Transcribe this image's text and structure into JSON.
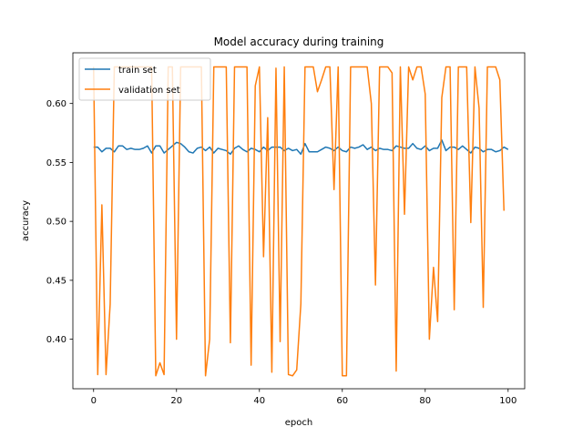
{
  "chart_data": {
    "type": "line",
    "title": "Model accuracy during training",
    "xlabel": "epoch",
    "ylabel": "accuracy",
    "xlim": [
      -5,
      104
    ],
    "ylim": [
      0.358,
      0.643
    ],
    "xticks": [
      0,
      20,
      40,
      60,
      80,
      100
    ],
    "yticks": [
      0.4,
      0.45,
      0.5,
      0.55,
      0.6
    ],
    "ytick_labels": [
      "0.40",
      "0.45",
      "0.50",
      "0.55",
      "0.60"
    ],
    "legend": "top-left",
    "grid": false,
    "series": [
      {
        "name": "train set",
        "color": "#1f77b4",
        "values": [
          0.563,
          0.563,
          0.559,
          0.562,
          0.562,
          0.559,
          0.564,
          0.564,
          0.561,
          0.562,
          0.561,
          0.561,
          0.562,
          0.564,
          0.558,
          0.564,
          0.564,
          0.558,
          0.561,
          0.564,
          0.567,
          0.566,
          0.563,
          0.559,
          0.558,
          0.562,
          0.563,
          0.56,
          0.563,
          0.558,
          0.562,
          0.561,
          0.56,
          0.557,
          0.562,
          0.564,
          0.561,
          0.559,
          0.562,
          0.561,
          0.559,
          0.563,
          0.56,
          0.563,
          0.563,
          0.563,
          0.56,
          0.562,
          0.56,
          0.561,
          0.557,
          0.566,
          0.559,
          0.559,
          0.559,
          0.561,
          0.563,
          0.562,
          0.56,
          0.563,
          0.56,
          0.559,
          0.563,
          0.562,
          0.563,
          0.565,
          0.561,
          0.563,
          0.56,
          0.562,
          0.561,
          0.561,
          0.56,
          0.564,
          0.563,
          0.562,
          0.562,
          0.566,
          0.562,
          0.561,
          0.564,
          0.56,
          0.562,
          0.562,
          0.569,
          0.56,
          0.563,
          0.563,
          0.561,
          0.564,
          0.561,
          0.558,
          0.563,
          0.562,
          0.559,
          0.561,
          0.561,
          0.559,
          0.56,
          0.563,
          0.561
        ]
      },
      {
        "name": "validation set",
        "color": "#ff7f0e",
        "values": [
          0.631,
          0.37,
          0.514,
          0.37,
          0.43,
          0.631,
          0.631,
          0.631,
          0.631,
          0.631,
          0.631,
          0.631,
          0.631,
          0.631,
          0.631,
          0.369,
          0.38,
          0.37,
          0.631,
          0.631,
          0.4,
          0.631,
          0.631,
          0.631,
          0.631,
          0.631,
          0.631,
          0.369,
          0.4,
          0.631,
          0.631,
          0.631,
          0.631,
          0.397,
          0.631,
          0.631,
          0.631,
          0.631,
          0.378,
          0.615,
          0.631,
          0.47,
          0.588,
          0.372,
          0.63,
          0.398,
          0.631,
          0.37,
          0.369,
          0.374,
          0.43,
          0.631,
          0.631,
          0.631,
          0.61,
          0.62,
          0.631,
          0.631,
          0.527,
          0.631,
          0.369,
          0.369,
          0.631,
          0.631,
          0.631,
          0.631,
          0.631,
          0.6,
          0.446,
          0.631,
          0.631,
          0.631,
          0.626,
          0.373,
          0.631,
          0.506,
          0.631,
          0.62,
          0.631,
          0.631,
          0.608,
          0.4,
          0.461,
          0.415,
          0.605,
          0.631,
          0.631,
          0.425,
          0.631,
          0.631,
          0.631,
          0.499,
          0.631,
          0.596,
          0.427,
          0.631,
          0.631,
          0.631,
          0.62,
          0.509
        ]
      }
    ]
  }
}
